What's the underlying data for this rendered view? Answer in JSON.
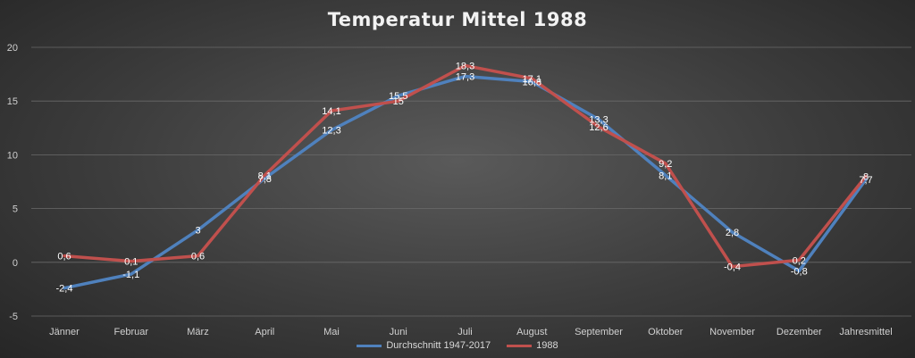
{
  "chart_data": {
    "type": "line",
    "title": "Temperatur Mittel 1988",
    "categories": [
      "Jänner",
      "Februar",
      "März",
      "April",
      "Mai",
      "Juni",
      "Juli",
      "August",
      "September",
      "Oktober",
      "November",
      "Dezember",
      "Jahresmittel"
    ],
    "series": [
      {
        "name": "Durchschnitt 1947-2017",
        "color": "#4f81bd",
        "values": [
          -2.4,
          -1.1,
          3,
          7.8,
          12.3,
          15.5,
          17.3,
          16.8,
          13.3,
          8.1,
          2.8,
          -0.8,
          7.7
        ],
        "labels": [
          "-2,4",
          "-1,1",
          "3",
          "7,8",
          "12,3",
          "15,5",
          "17,3",
          "16,8",
          "13,3",
          "8,1",
          "2,8",
          "-0,8",
          "7,7"
        ]
      },
      {
        "name": "1988",
        "color": "#c0504d",
        "values": [
          0.6,
          0.1,
          0.6,
          8.1,
          14.1,
          15,
          18.3,
          17.1,
          12.6,
          9.2,
          -0.4,
          0.2,
          8
        ],
        "labels": [
          "0,6",
          "0,1",
          "0,6",
          "8,1",
          "14,1",
          "15",
          "18,3",
          "17,1",
          "12,6",
          "9,2",
          "-0,4",
          "0,2",
          "8"
        ]
      }
    ],
    "yticks": [
      "-5",
      "0",
      "5",
      "10",
      "15",
      "20"
    ],
    "ylim": [
      -5,
      20
    ],
    "grid": true,
    "legend_position": "bottom"
  }
}
